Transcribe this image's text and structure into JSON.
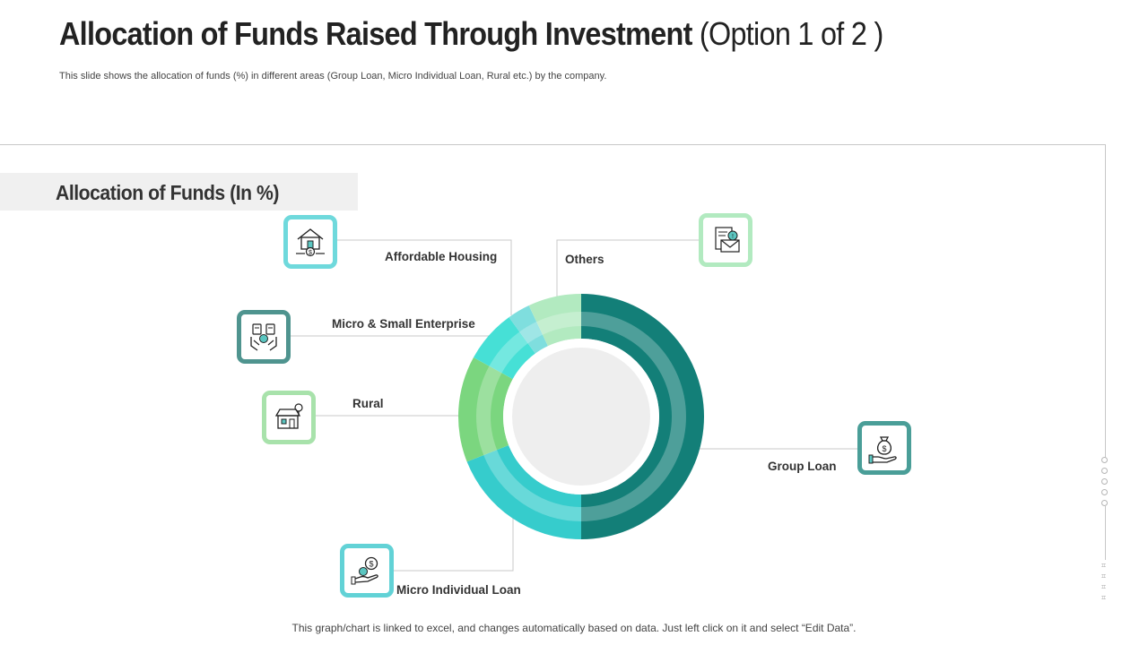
{
  "header": {
    "title_main": "Allocation of Funds Raised Through Investment",
    "title_suffix": "(Option 1 of 2 )",
    "subtitle": "This slide shows the allocation of funds (%) in different areas (Group Loan, Micro Individual Loan, Rural etc.) by the company."
  },
  "section": {
    "heading": "Allocation of Funds (In %)"
  },
  "chart_data": {
    "type": "pie",
    "variant": "donut",
    "title": "Allocation of Funds (In %)",
    "unit": "%",
    "slices": [
      {
        "label": "Group Loan",
        "value": 50,
        "color": "#137f78",
        "icon": "money-bag-hand-icon",
        "icon_border": "#4a9e98"
      },
      {
        "label": "Micro Individual Loan",
        "value": 19,
        "color": "#36cccc",
        "icon": "coin-hand-icon",
        "icon_border": "#62d2d6"
      },
      {
        "label": "Rural",
        "value": 14,
        "color": "#7bd67f",
        "icon": "rural-shop-icon",
        "icon_border": "#a8e2ab"
      },
      {
        "label": "Micro & Small Enterprise",
        "value": 7,
        "color": "#46e0d6",
        "icon": "calculator-hands-icon",
        "icon_border": "#4f948f"
      },
      {
        "label": "Affordable Housing",
        "value": 3,
        "color": "#7fdede",
        "icon": "house-coin-icon",
        "icon_border": "#6fd9dc"
      },
      {
        "label": "Others",
        "value": 7,
        "color": "#b2eac0",
        "icon": "envelope-document-icon",
        "icon_border": "#b2eac0"
      }
    ],
    "legend": "callouts",
    "colors": {
      "center": "#eeeeee",
      "leader_line": "#c8c8c8"
    }
  },
  "footer": {
    "note": "This graph/chart is linked to excel, and changes automatically based on data. Just left click on it and select “Edit Data”."
  }
}
